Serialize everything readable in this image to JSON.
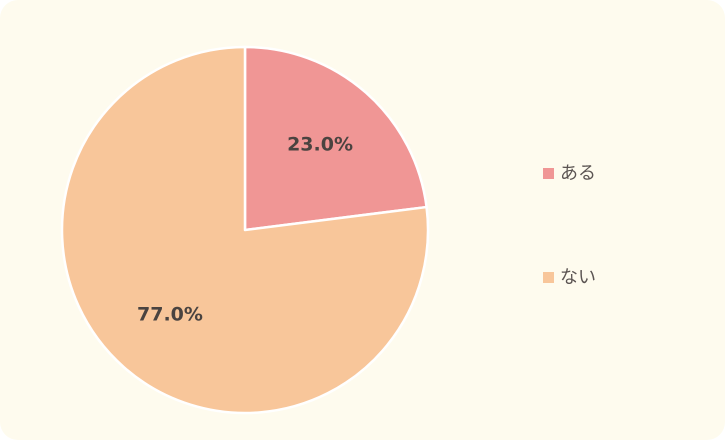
{
  "chart_data": {
    "type": "pie",
    "start_angle": "top (12 o'clock)",
    "direction": "clockwise",
    "legend_position": "right",
    "slices": [
      {
        "name": "ある",
        "value": 23.0,
        "label": "23.0%",
        "color": "#f09695"
      },
      {
        "name": "ない",
        "value": 77.0,
        "label": "77.0%",
        "color": "#f8c69a"
      }
    ]
  }
}
